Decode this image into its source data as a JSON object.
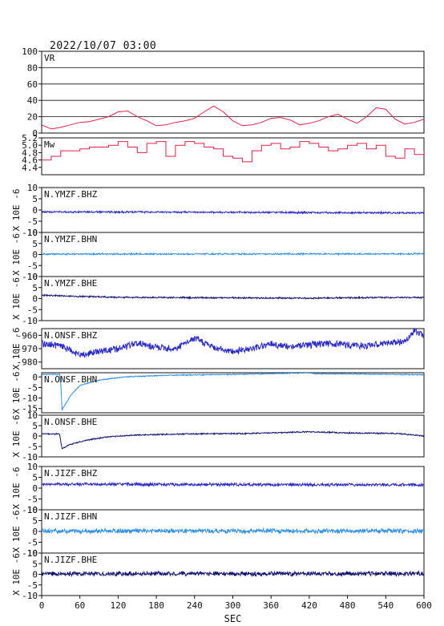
{
  "timestamp": "2022/10/07 03:00",
  "chart_data": {
    "type": "line",
    "xlabel": "SEC",
    "xlim": [
      0,
      600
    ],
    "xticks": [
      0,
      60,
      120,
      180,
      240,
      300,
      360,
      420,
      480,
      540,
      600
    ],
    "ylabel_waveform": "X 10E -6",
    "panels": [
      {
        "title": "VR",
        "ylim": [
          0,
          100
        ],
        "yticks": [
          0,
          20,
          40,
          60,
          80,
          100
        ],
        "ytick_labels": [
          "0",
          "20",
          "40",
          "60",
          "80",
          "100"
        ],
        "grid": true,
        "color": "#e0204a",
        "x": [
          0,
          15,
          30,
          45,
          60,
          75,
          90,
          105,
          120,
          135,
          150,
          165,
          180,
          195,
          210,
          225,
          240,
          255,
          270,
          285,
          300,
          315,
          330,
          345,
          360,
          375,
          390,
          405,
          420,
          435,
          450,
          465,
          480,
          495,
          510,
          525,
          540,
          555,
          570,
          585,
          600
        ],
        "values": [
          10,
          5,
          7,
          10,
          13,
          14,
          17,
          20,
          26,
          27,
          20,
          15,
          9,
          10,
          13,
          15,
          18,
          26,
          33,
          26,
          15,
          9,
          10,
          13,
          18,
          19,
          16,
          10,
          12,
          15,
          20,
          23,
          17,
          12,
          20,
          31,
          29,
          17,
          11,
          13,
          17
        ]
      },
      {
        "title": "Mw",
        "ylim": [
          4.2,
          5.2
        ],
        "yticks": [
          4.4,
          4.6,
          4.8,
          5.0,
          5.2
        ],
        "ytick_labels": [
          "4.4",
          "4.6",
          "4.8",
          "5.0",
          "5.2"
        ],
        "grid": false,
        "color": "#e0204a",
        "x": [
          0,
          15,
          30,
          45,
          60,
          75,
          90,
          105,
          120,
          135,
          150,
          165,
          180,
          195,
          210,
          225,
          240,
          255,
          270,
          285,
          300,
          315,
          330,
          345,
          360,
          375,
          390,
          405,
          420,
          435,
          450,
          465,
          480,
          495,
          510,
          525,
          540,
          555,
          570,
          585,
          600
        ],
        "values": [
          4.6,
          4.7,
          4.85,
          4.85,
          4.9,
          4.95,
          4.95,
          5.0,
          5.1,
          4.95,
          4.8,
          5.05,
          5.1,
          4.7,
          5.0,
          5.1,
          5.05,
          4.95,
          4.9,
          4.7,
          4.65,
          4.55,
          4.85,
          5.0,
          5.05,
          4.9,
          4.95,
          5.1,
          5.05,
          4.95,
          4.85,
          4.9,
          5.0,
          5.05,
          4.9,
          5.0,
          4.7,
          4.65,
          4.9,
          4.75,
          4.85
        ]
      },
      {
        "title": "N.YMZF.BHZ",
        "ylim": [
          -10,
          10
        ],
        "yticks": [
          -10,
          -5,
          0,
          5,
          10
        ],
        "ytick_labels": [
          "-10",
          "-5",
          "0",
          "5",
          "10"
        ],
        "color": "#2a2ac8",
        "trend": {
          "x": [
            0,
            600
          ],
          "values": [
            -0.8,
            -1.3
          ]
        },
        "noise": 0.35
      },
      {
        "title": "N.YMZF.BHN",
        "ylim": [
          -10,
          10
        ],
        "yticks": [
          -10,
          -5,
          0,
          5,
          10
        ],
        "ytick_labels": [
          "-10",
          "-5",
          "0",
          "5",
          "10"
        ],
        "color": "#2f8fe6",
        "trend": {
          "x": [
            0,
            600
          ],
          "values": [
            0.2,
            0.3
          ]
        },
        "noise": 0.3
      },
      {
        "title": "N.YMZF.BHE",
        "ylim": [
          -10,
          10
        ],
        "yticks": [
          -10,
          -5,
          0,
          5,
          10
        ],
        "ytick_labels": [
          "-10",
          "-5",
          "0",
          "5",
          "10"
        ],
        "color": "#141470",
        "trend": {
          "x": [
            0,
            60,
            120,
            240,
            420,
            500,
            600
          ],
          "values": [
            1.5,
            1.0,
            0.6,
            0.4,
            0.2,
            0.4,
            0.5
          ]
        },
        "noise": 0.3
      },
      {
        "title": "N.ONSF.BHZ",
        "ylim": [
          -985,
          -955
        ],
        "yticks": [
          -980,
          -970,
          -960
        ],
        "ytick_labels": [
          "-980",
          "-970",
          "-960"
        ],
        "color": "#2a2ac8",
        "trend": {
          "x": [
            0,
            30,
            60,
            90,
            120,
            150,
            180,
            210,
            240,
            270,
            300,
            330,
            360,
            390,
            420,
            450,
            480,
            510,
            540,
            570,
            585,
            600
          ],
          "values": [
            -966,
            -968,
            -975,
            -972,
            -970,
            -966,
            -969,
            -970,
            -962,
            -969,
            -972,
            -970,
            -966,
            -969,
            -967,
            -966,
            -967,
            -968,
            -966,
            -965,
            -956,
            -961
          ]
        },
        "noise": 2.3
      },
      {
        "title": "N.ONSF.BHN",
        "ylim": [
          -17,
          2
        ],
        "yticks": [
          -15,
          -10,
          -5,
          0
        ],
        "ytick_labels": [
          "-15",
          "-10",
          "-5",
          "0"
        ],
        "color": "#2f8fe6",
        "trend": {
          "x": [
            0,
            28,
            30,
            32,
            45,
            60,
            90,
            130,
            200,
            300,
            400,
            420,
            430,
            500,
            600
          ],
          "values": [
            1.2,
            1.2,
            -3,
            -15.5,
            -9,
            -4,
            -1.5,
            0,
            0.8,
            1.2,
            1.8,
            2.0,
            1.5,
            1.4,
            1.0
          ]
        },
        "noise": 0.2
      },
      {
        "title": "N.ONSF.BHE",
        "ylim": [
          -10,
          10
        ],
        "yticks": [
          -10,
          -5,
          0,
          5,
          10
        ],
        "ytick_labels": [
          "-10",
          "-5",
          "0",
          "5",
          "10"
        ],
        "color": "#141470",
        "trend": {
          "x": [
            0,
            28,
            32,
            45,
            70,
            100,
            150,
            220,
            320,
            420,
            480,
            560,
            600
          ],
          "values": [
            1.0,
            1.0,
            -6,
            -4,
            -2,
            -0.5,
            0.5,
            1.0,
            1.2,
            2.0,
            1.5,
            1.2,
            0.0
          ]
        },
        "noise": 0.25
      },
      {
        "title": "N.JIZF.BHZ",
        "ylim": [
          -10,
          10
        ],
        "yticks": [
          -10,
          -5,
          0,
          5,
          10
        ],
        "ytick_labels": [
          "-10",
          "-5",
          "0",
          "5",
          "10"
        ],
        "color": "#2a2ac8",
        "trend": {
          "x": [
            0,
            600
          ],
          "values": [
            1.8,
            1.5
          ]
        },
        "noise": 0.6
      },
      {
        "title": "N.JIZF.BHN",
        "ylim": [
          -10,
          10
        ],
        "yticks": [
          -10,
          -5,
          0,
          5,
          10
        ],
        "ytick_labels": [
          "-10",
          "-5",
          "0",
          "5",
          "10"
        ],
        "color": "#2f8fe6",
        "trend": {
          "x": [
            0,
            600
          ],
          "values": [
            0.2,
            0.2
          ]
        },
        "noise": 0.9
      },
      {
        "title": "N.JIZF.BHE",
        "ylim": [
          -10,
          10
        ],
        "yticks": [
          -10,
          -5,
          0,
          5,
          10
        ],
        "ytick_labels": [
          "-10",
          "-5",
          "0",
          "5",
          "10"
        ],
        "color": "#141470",
        "trend": {
          "x": [
            0,
            600
          ],
          "values": [
            0.3,
            0.3
          ]
        },
        "noise": 0.9
      }
    ]
  }
}
